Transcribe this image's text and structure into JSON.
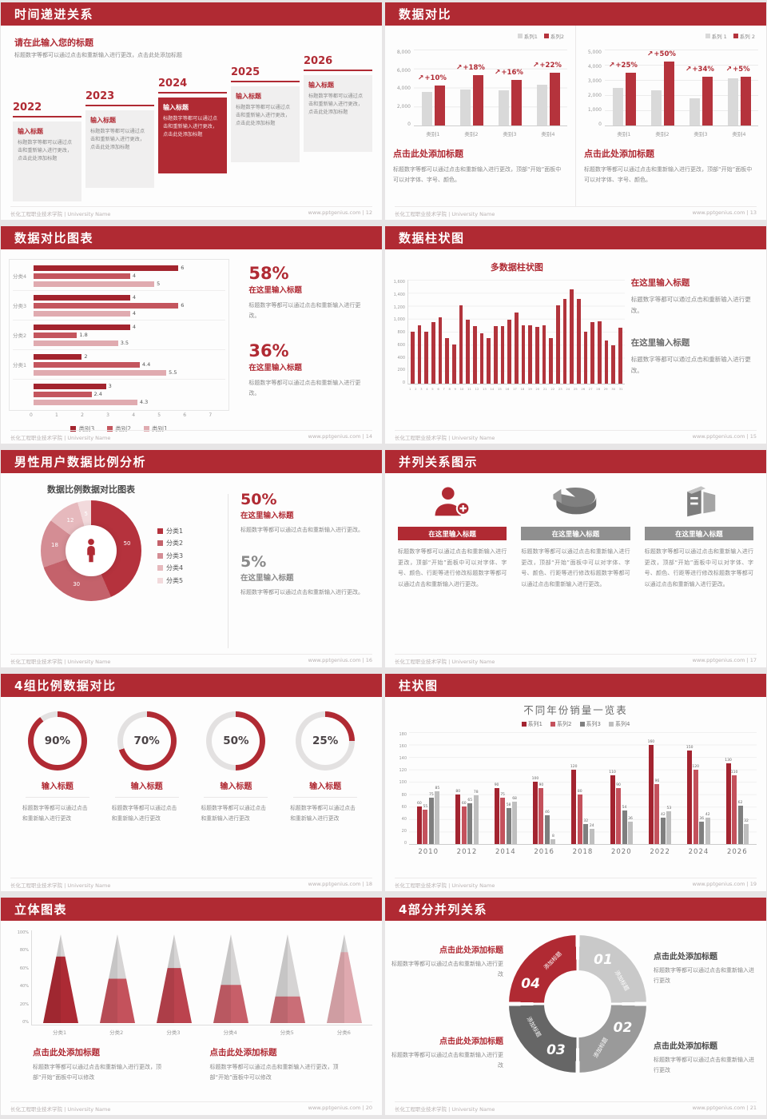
{
  "colors": {
    "accent": "#b02a33",
    "bar_red": "#b5333c",
    "bar_dark_red": "#a3242e",
    "bar_mid_red": "#c4565e",
    "bar_light_pink": "#e0abb0",
    "bar_gray": "#d9d9d9",
    "gray_dark": "#7f7f7f",
    "gray_mid": "#9a9a9a",
    "gray_light": "#bfbfbf",
    "seg1": "#c9c9c9",
    "seg2": "#9a9a9a",
    "seg3": "#666666",
    "donut": [
      "#b5323d",
      "#c4626b",
      "#d48d94",
      "#e6b9bd",
      "#f2dadc"
    ],
    "cone": [
      "#ac2a34",
      "#c4525c",
      "#bb434e",
      "#c75f69",
      "#ca6e77",
      "#dfa9af"
    ]
  },
  "footer": {
    "left": "长化工程职业技术学院 | University Name",
    "site": "www.pptgenius.com"
  },
  "slides": [
    {
      "type": "timeline",
      "title": "时间递进关系",
      "footer_right": "www.pptgenius.com | 12",
      "heading": "请在此输入您的标题",
      "intro": "标题数字等都可以通过点击和重新输入进行更改，点击此处添加标题",
      "items": [
        {
          "year": "2022",
          "box_title": "输入标题",
          "box_body": "标题数字等都可以通过点击和重新输入进行更改，点击此处添加标题",
          "highlight": false
        },
        {
          "year": "2023",
          "box_title": "输入标题",
          "box_body": "标题数字等都可以通过点击和重新输入进行更改，点击此处添加标题",
          "highlight": false
        },
        {
          "year": "2024",
          "box_title": "输入标题",
          "box_body": "标题数字等都可以通过点击和重新输入进行更改，点击此处添加标题",
          "highlight": true
        },
        {
          "year": "2025",
          "box_title": "输入标题",
          "box_body": "标题数字等都可以通过点击和重新输入进行更改，点击此处添加标题",
          "highlight": false
        },
        {
          "year": "2026",
          "box_title": "输入标题",
          "box_body": "标题数字等都可以通过点击和重新输入进行更改，点击此处添加标题",
          "highlight": false
        }
      ]
    },
    {
      "type": "compareBars",
      "title": "数据对比",
      "footer_right": "www.pptgenius.com | 13",
      "charts": [
        {
          "legend": [
            "系列1",
            "系列2"
          ],
          "yticks": [
            "8,000",
            "6,000",
            "4,000",
            "2,000",
            "0"
          ],
          "ymax": 8000,
          "categories": [
            "类别1",
            "类别2",
            "类别3",
            "类别4"
          ],
          "series1": [
            3500,
            3800,
            3700,
            4300
          ],
          "series2": [
            4200,
            5300,
            4800,
            5600
          ],
          "labels": [
            "+10%",
            "+18%",
            "+16%",
            "+22%"
          ],
          "heading": "点击此处添加标题",
          "body": "标题数字等都可以通过点击和重新输入进行更改，顶部“开始”面板中可以对字体、字号、颜色。"
        },
        {
          "legend": [
            "系列 1",
            "系列 2"
          ],
          "yticks": [
            "5,000",
            "4,000",
            "3,000",
            "2,000",
            "1,000",
            "0"
          ],
          "ymax": 5000,
          "categories": [
            "类别1",
            "类别2",
            "类别3",
            "类别4"
          ],
          "series1": [
            2500,
            2300,
            1800,
            3100
          ],
          "series2": [
            3500,
            4200,
            3200,
            3200
          ],
          "labels": [
            "+25%",
            "+50%",
            "+34%",
            "+5%"
          ],
          "heading": "点击此处添加标题",
          "body": "标题数字等都可以通过点击和重新输入进行更改，顶部“开始”面板中可以对字体、字号、颜色。"
        }
      ]
    },
    {
      "type": "hbar",
      "title": "数据对比图表",
      "footer_right": "www.pptgenius.com | 14",
      "chart_data": {
        "type": "bar",
        "orientation": "horizontal",
        "xmax": 7,
        "xticks": [
          "0",
          "1",
          "2",
          "3",
          "4",
          "5",
          "6",
          "7"
        ],
        "legend": [
          "类别3",
          "类别2",
          "类别1"
        ],
        "groups": [
          {
            "label": "分类4",
            "values": [
              6,
              4,
              5
            ]
          },
          {
            "label": "分类3",
            "values": [
              4,
              6,
              4
            ]
          },
          {
            "label": "分类2",
            "values": [
              4,
              1.8,
              3.5
            ]
          },
          {
            "label": "分类1",
            "values": [
              2,
              4.4,
              5.5
            ]
          },
          {
            "label": "",
            "values": [
              3,
              2.4,
              4.3
            ]
          }
        ]
      },
      "stats": [
        {
          "value": "58%",
          "heading": "在这里输入标题",
          "body": "标题数字等都可以通过点击和重新输入进行更改。",
          "accent": true
        },
        {
          "value": "36%",
          "heading": "在这里输入标题",
          "body": "标题数字等都可以通过点击和重新输入进行更改。",
          "accent": true
        }
      ]
    },
    {
      "type": "multiCol",
      "title": "数据柱状图",
      "footer_right": "www.pptgenius.com | 15",
      "chart_data": {
        "type": "bar",
        "title": "多数据柱状图",
        "ymax": 1600,
        "yticks": [
          "1,600",
          "1,400",
          "1,200",
          "1,000",
          "800",
          "600",
          "400",
          "200",
          "0"
        ],
        "categories": [
          "1",
          "2",
          "3",
          "4",
          "5",
          "6",
          "7",
          "8",
          "9",
          "10",
          "11",
          "12",
          "13",
          "14",
          "15",
          "16",
          "17",
          "18",
          "19",
          "20",
          "21",
          "22",
          "23",
          "24",
          "25",
          "26",
          "27",
          "28",
          "29",
          "30",
          "31"
        ],
        "values": [
          800,
          900,
          800,
          950,
          1020,
          700,
          600,
          1210,
          980,
          890,
          780,
          700,
          890,
          890,
          990,
          1100,
          900,
          900,
          880,
          900,
          700,
          1210,
          1300,
          1450,
          1300,
          800,
          950,
          960,
          660,
          590,
          860
        ]
      },
      "stats": [
        {
          "heading": "在这里输入标题",
          "body": "标题数字等都可以通过点击和重新输入进行更改。",
          "accent": true
        },
        {
          "heading": "在这里输入标题",
          "body": "标题数字等都可以通过点击和重新输入进行更改。",
          "accent": false
        }
      ]
    },
    {
      "type": "donut",
      "title": "男性用户数据比例分析",
      "footer_right": "www.pptgenius.com | 16",
      "chart_data": {
        "type": "pie",
        "title": "数据比例数据对比图表",
        "slices": [
          {
            "label": "分类1",
            "value": 50
          },
          {
            "label": "分类2",
            "value": 30
          },
          {
            "label": "分类3",
            "value": 18
          },
          {
            "label": "分类4",
            "value": 12
          },
          {
            "label": "分类5",
            "value": 5
          }
        ]
      },
      "center_icon": "male-person-icon",
      "stats": [
        {
          "value": "50%",
          "heading": "在这里输入标题",
          "body": "标题数字等都可以通过点击和重新输入进行更改。",
          "accent": true
        },
        {
          "value": "5%",
          "heading": "在这里输入标题",
          "body": "标题数字等都可以通过点击和重新输入进行更改。",
          "accent": false
        }
      ]
    },
    {
      "type": "threeCol",
      "title": "并列关系图示",
      "footer_right": "www.pptgenius.com | 17",
      "columns": [
        {
          "icon": "person-plus-icon",
          "header": "在这里输入标题",
          "accent": true,
          "body": "标题数字等都可以通过点击和重新输入进行更改，顶部“开始”面板中可以对字体、字号、颜色、行距等进行修改标题数字等都可以通过点击和重新输入进行更改。"
        },
        {
          "icon": "pie-3d-icon",
          "header": "在这里输入标题",
          "accent": false,
          "body": "标题数字等都可以通过点击和重新输入进行更改，顶部“开始”面板中可以对字体、字号、颜色、行距等进行修改标题数字等都可以通过点击和重新输入进行更改。"
        },
        {
          "icon": "building-icon",
          "header": "在这里输入标题",
          "accent": false,
          "body": "标题数字等都可以通过点击和重新输入进行更改，顶部“开始”面板中可以对字体、字号、颜色、行距等进行修改标题数字等都可以通过点击和重新输入进行更改。"
        }
      ]
    },
    {
      "type": "rings",
      "title": "4组比例数据对比",
      "footer_right": "www.pptgenius.com | 18",
      "rings": [
        {
          "percent": 90,
          "value": "90%",
          "label": "输入标题",
          "body": "标题数字等都可以通过点击和重新输入进行更改"
        },
        {
          "percent": 70,
          "value": "70%",
          "label": "输入标题",
          "body": "标题数字等都可以通过点击和重新输入进行更改"
        },
        {
          "percent": 50,
          "value": "50%",
          "label": "输入标题",
          "body": "标题数字等都可以通过点击和重新输入进行更改"
        },
        {
          "percent": 25,
          "value": "25%",
          "label": "输入标题",
          "body": "标题数字等都可以通过点击和重新输入进行更改"
        }
      ]
    },
    {
      "type": "groupedBars",
      "title": "柱状图",
      "footer_right": "www.pptgenius.com | 19",
      "chart_data": {
        "type": "bar",
        "title": "不同年份销量一览表",
        "ymax": 180,
        "yticks": [
          "180",
          "160",
          "140",
          "120",
          "100",
          "80",
          "60",
          "40",
          "20",
          "0"
        ],
        "categories": [
          "2010",
          "2012",
          "2014",
          "2016",
          "2018",
          "2020",
          "2022",
          "2024",
          "2026"
        ],
        "series": [
          {
            "name": "系列1",
            "values": [
              60,
              80,
              90,
              100,
              120,
              110,
              160,
              150,
              130
            ]
          },
          {
            "name": "系列2",
            "values": [
              55,
              60,
              75,
              90,
              80,
              90,
              96,
              120,
              110
            ]
          },
          {
            "name": "系列3",
            "values": [
              75,
              65,
              58,
              46,
              32,
              54,
              42,
              36,
              62
            ]
          },
          {
            "name": "系列4",
            "values": [
              85,
              78,
              68,
              8,
              24,
              36,
              53,
              42,
              32
            ]
          }
        ]
      }
    },
    {
      "type": "cones",
      "title": "立体图表",
      "footer_right": "www.pptgenius.com | 20",
      "chart_data": {
        "type": "bar",
        "style": "3d-cone",
        "ymax": 100,
        "yticks": [
          "100%",
          "80%",
          "60%",
          "40%",
          "20%",
          "0%"
        ],
        "categories": [
          "分类1",
          "分类2",
          "分类3",
          "分类4",
          "分类5",
          "分类6"
        ],
        "values": [
          75,
          50,
          62,
          43,
          30,
          80
        ]
      },
      "notes": [
        {
          "heading": "点击此处添加标题",
          "body": "标题数字等都可以通过点击和重新输入进行更改，顶部“开始”面板中可以修改"
        },
        {
          "heading": "点击此处添加标题",
          "body": "标题数字等都可以通过点击和重新输入进行更改，顶部“开始”面板中可以修改"
        }
      ]
    },
    {
      "type": "cycle",
      "title": "4部分并列关系",
      "footer_right": "www.pptgenius.com | 21",
      "segments": [
        {
          "num": "01",
          "label": "添加标题"
        },
        {
          "num": "02",
          "label": "添加标题"
        },
        {
          "num": "03",
          "label": "添加标题"
        },
        {
          "num": "04",
          "label": "添加标题"
        }
      ],
      "notes": [
        {
          "heading": "点击此处添加标题",
          "body": "标题数字等都可以通过点击和重新输入进行更改",
          "accent": true,
          "align": "right"
        },
        {
          "heading": "点击此处添加标题",
          "body": "标题数字等都可以通过点击和重新输入进行更改",
          "accent": false,
          "align": "left"
        },
        {
          "heading": "点击此处添加标题",
          "body": "标题数字等都可以通过点击和重新输入进行更改",
          "accent": true,
          "align": "right"
        },
        {
          "heading": "点击此处添加标题",
          "body": "标题数字等都可以通过点击和重新输入进行更改",
          "accent": false,
          "align": "left"
        }
      ]
    }
  ]
}
